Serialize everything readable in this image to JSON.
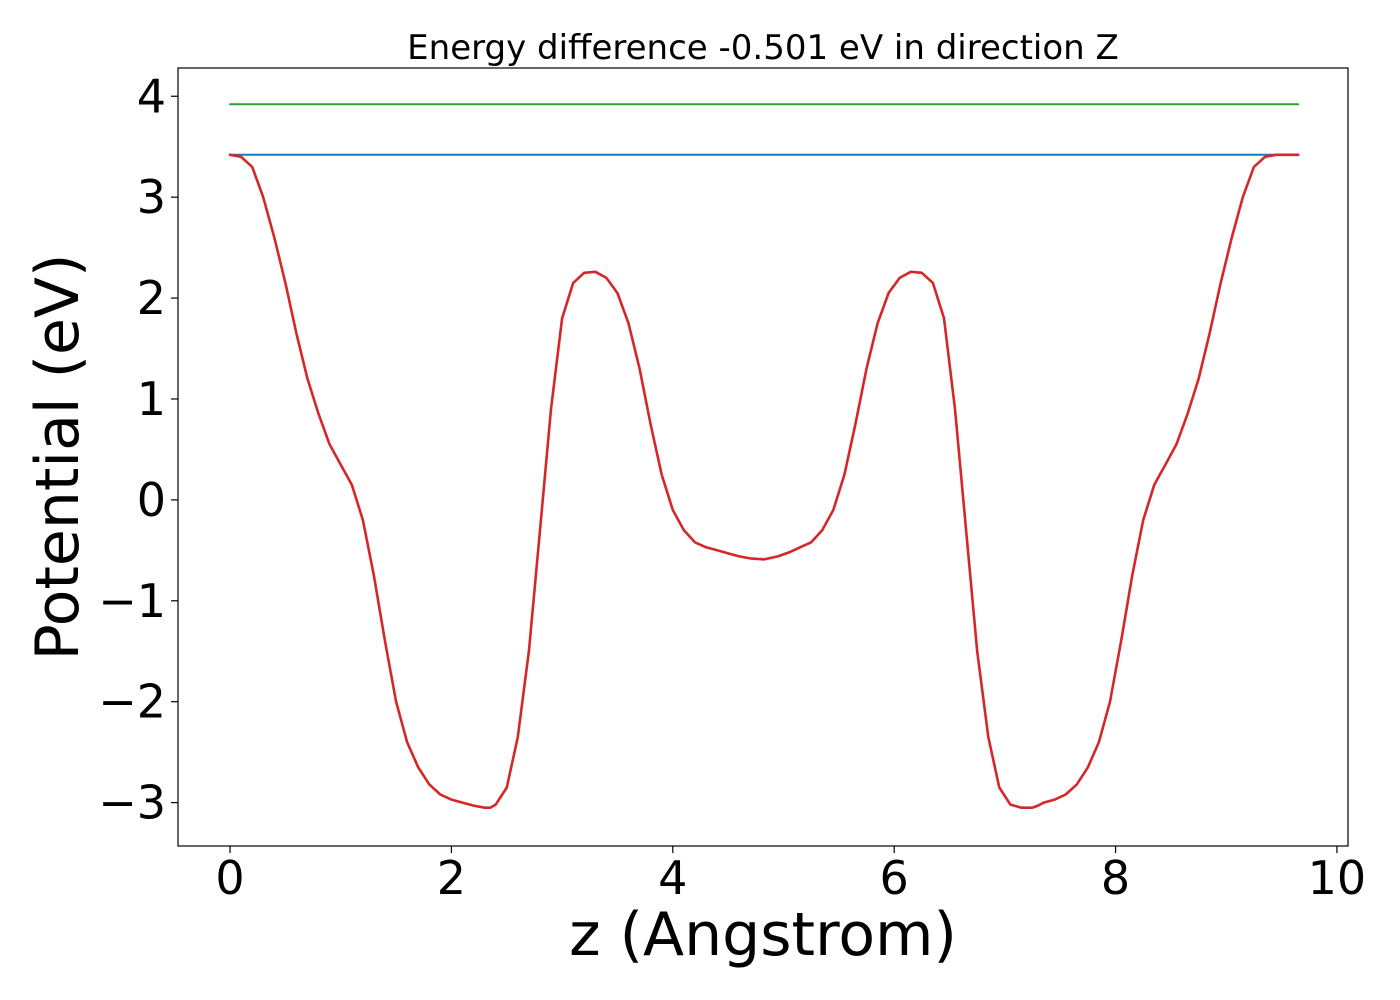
{
  "chart_data": {
    "type": "line",
    "title": "Energy difference -0.501 eV in direction Z",
    "xlabel": "z (Angstrom)",
    "ylabel": "Potential (eV)",
    "xlim": [
      -0.47,
      10.1
    ],
    "ylim": [
      -3.43,
      4.28
    ],
    "xticks": [
      0,
      2,
      4,
      6,
      8,
      10
    ],
    "yticks": [
      -3,
      -2,
      -1,
      0,
      1,
      2,
      3,
      4
    ],
    "xtick_labels": [
      "0",
      "2",
      "4",
      "6",
      "8",
      "10"
    ],
    "ytick_labels": [
      "−3",
      "−2",
      "−1",
      "0",
      "1",
      "2",
      "3",
      "4"
    ],
    "grid": false,
    "series": [
      {
        "color": "#2ca02c",
        "x": [
          0,
          9.65
        ],
        "y": [
          3.92,
          3.92
        ]
      },
      {
        "color": "#1f77b4",
        "x": [
          0,
          9.65
        ],
        "y": [
          3.42,
          3.42
        ]
      },
      {
        "color": "#d62728",
        "x": [
          0,
          0.1,
          0.2,
          0.3,
          0.4,
          0.5,
          0.6,
          0.7,
          0.8,
          0.9,
          1.0,
          1.1,
          1.2,
          1.3,
          1.4,
          1.5,
          1.6,
          1.7,
          1.8,
          1.9,
          2.0,
          2.1,
          2.2,
          2.3,
          2.35,
          2.4,
          2.5,
          2.6,
          2.7,
          2.8,
          2.9,
          3.0,
          3.1,
          3.2,
          3.3,
          3.4,
          3.5,
          3.6,
          3.7,
          3.8,
          3.9,
          4.0,
          4.1,
          4.2,
          4.3,
          4.4,
          4.5,
          4.6,
          4.7,
          4.825,
          4.95,
          5.05,
          5.15,
          5.25,
          5.35,
          5.45,
          5.55,
          5.65,
          5.75,
          5.85,
          5.95,
          6.05,
          6.15,
          6.25,
          6.35,
          6.45,
          6.55,
          6.65,
          6.75,
          6.85,
          6.95,
          7.05,
          7.15,
          7.25,
          7.3,
          7.35,
          7.45,
          7.55,
          7.65,
          7.75,
          7.85,
          7.95,
          8.05,
          8.15,
          8.25,
          8.35,
          8.45,
          8.55,
          8.65,
          8.75,
          8.85,
          8.95,
          9.05,
          9.15,
          9.25,
          9.35,
          9.45,
          9.55,
          9.65
        ],
        "y": [
          3.42,
          3.4,
          3.3,
          3.0,
          2.6,
          2.15,
          1.65,
          1.2,
          0.85,
          0.55,
          0.35,
          0.15,
          -0.2,
          -0.75,
          -1.4,
          -2.0,
          -2.4,
          -2.65,
          -2.82,
          -2.92,
          -2.97,
          -3.0,
          -3.03,
          -3.05,
          -3.05,
          -3.02,
          -2.85,
          -2.35,
          -1.5,
          -0.3,
          0.9,
          1.8,
          2.15,
          2.25,
          2.26,
          2.2,
          2.05,
          1.75,
          1.3,
          0.75,
          0.25,
          -0.1,
          -0.3,
          -0.42,
          -0.47,
          -0.5,
          -0.53,
          -0.56,
          -0.58,
          -0.59,
          -0.56,
          -0.52,
          -0.47,
          -0.42,
          -0.3,
          -0.1,
          0.25,
          0.75,
          1.3,
          1.75,
          2.05,
          2.2,
          2.26,
          2.25,
          2.15,
          1.8,
          0.9,
          -0.3,
          -1.5,
          -2.35,
          -2.85,
          -3.02,
          -3.05,
          -3.05,
          -3.03,
          -3.0,
          -2.97,
          -2.92,
          -2.82,
          -2.65,
          -2.4,
          -2.0,
          -1.4,
          -0.75,
          -0.2,
          0.15,
          0.35,
          0.55,
          0.85,
          1.2,
          1.65,
          2.15,
          2.6,
          3.0,
          3.3,
          3.4,
          3.42,
          3.42,
          3.42
        ]
      }
    ]
  }
}
